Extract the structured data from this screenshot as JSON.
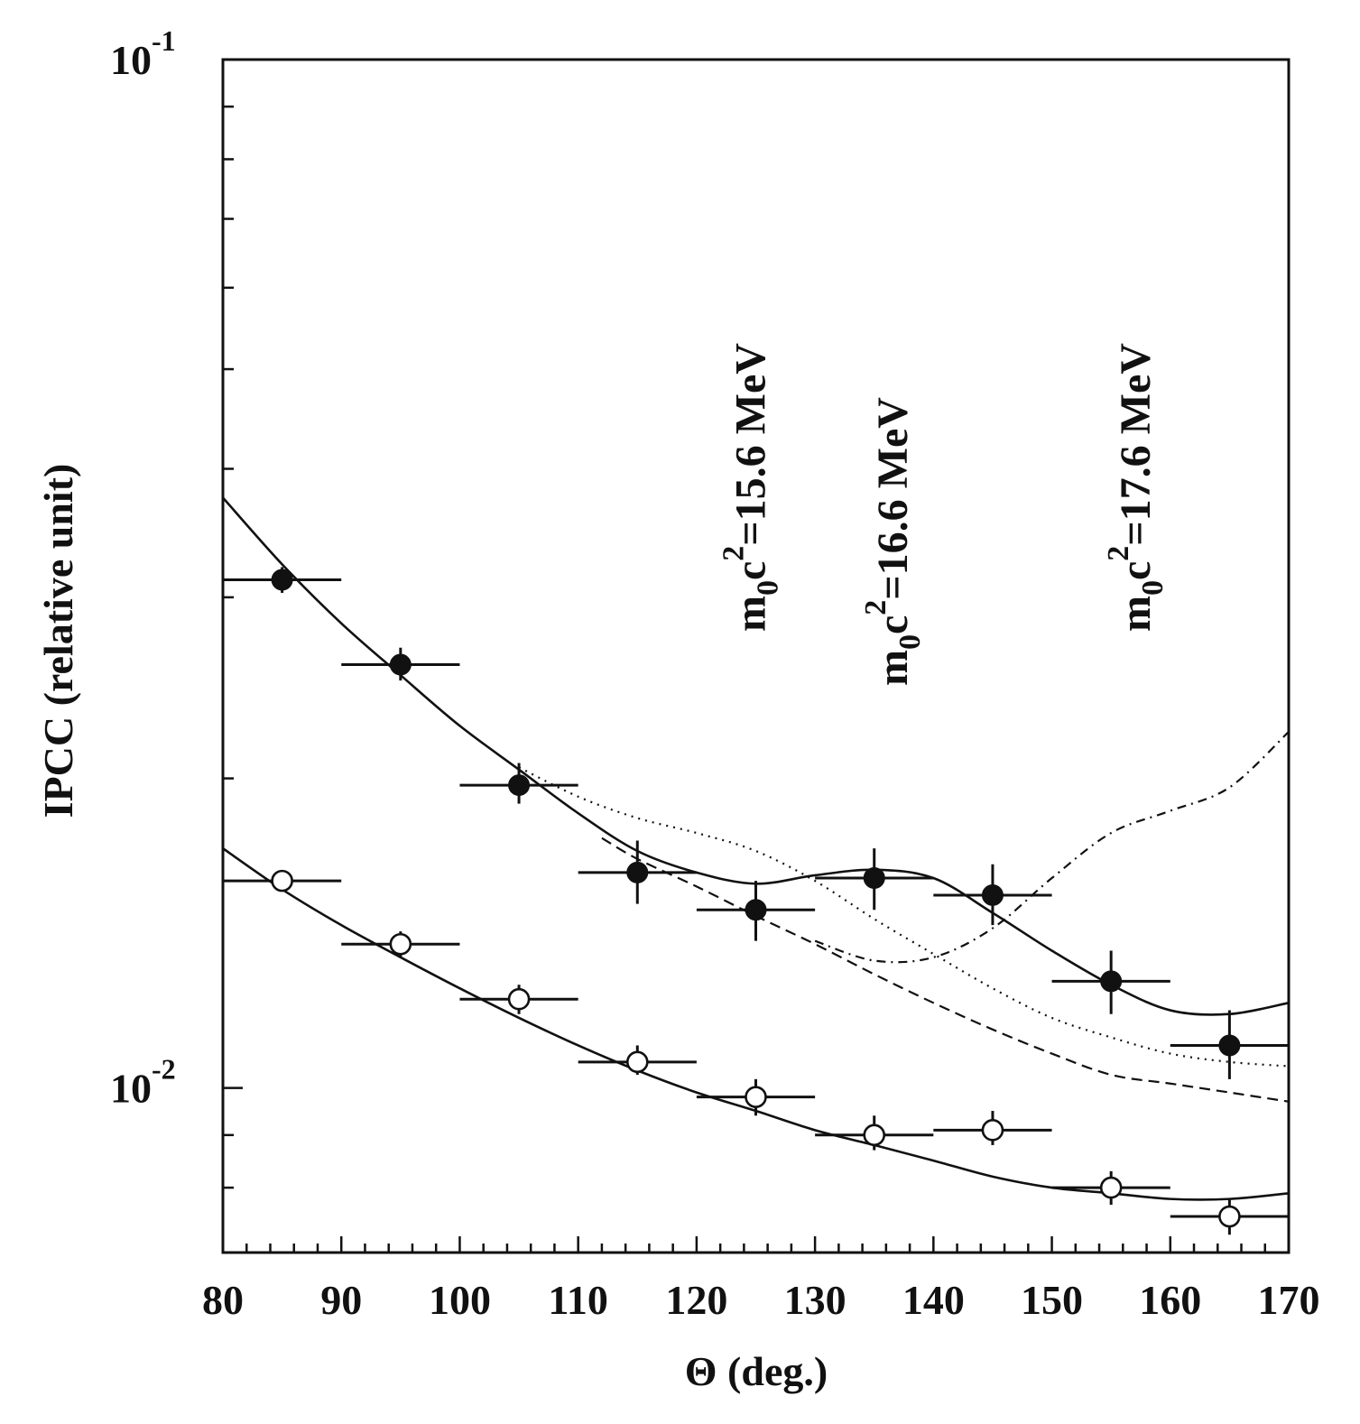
{
  "chart_data": {
    "type": "scatter",
    "title": "",
    "xlabel": "Θ (deg.)",
    "ylabel": "IPCC (relative unit)",
    "xlim": [
      80,
      170
    ],
    "ylim_log10": [
      -2.16,
      -1.0
    ],
    "yscale": "log",
    "x_ticks": [
      80,
      90,
      100,
      110,
      120,
      130,
      140,
      150,
      160,
      170
    ],
    "x_tick_labels": [
      "80",
      "90",
      "100",
      "110",
      "120",
      "130",
      "140",
      "150",
      "160",
      "170"
    ],
    "y_tick_labels": [
      {
        "value": 0.1,
        "base": "10",
        "exp": "-1"
      },
      {
        "value": 0.01,
        "base": "10",
        "exp": "-2"
      }
    ],
    "series": [
      {
        "name": "filled-circles",
        "marker": "filled",
        "points": [
          {
            "x": 85,
            "y": 0.0312,
            "yerr_lo": 0.0303,
            "yerr_hi": 0.0321
          },
          {
            "x": 95,
            "y": 0.0258,
            "yerr_lo": 0.0249,
            "yerr_hi": 0.0268
          },
          {
            "x": 105,
            "y": 0.0197,
            "yerr_lo": 0.0189,
            "yerr_hi": 0.0207
          },
          {
            "x": 115,
            "y": 0.0162,
            "yerr_lo": 0.0151,
            "yerr_hi": 0.0174
          },
          {
            "x": 125,
            "y": 0.0149,
            "yerr_lo": 0.0139,
            "yerr_hi": 0.0159
          },
          {
            "x": 135,
            "y": 0.016,
            "yerr_lo": 0.0149,
            "yerr_hi": 0.0171
          },
          {
            "x": 145,
            "y": 0.0154,
            "yerr_lo": 0.0144,
            "yerr_hi": 0.0165
          },
          {
            "x": 155,
            "y": 0.0127,
            "yerr_lo": 0.0118,
            "yerr_hi": 0.0136
          },
          {
            "x": 165,
            "y": 0.011,
            "yerr_lo": 0.0102,
            "yerr_hi": 0.0119
          }
        ]
      },
      {
        "name": "open-circles",
        "marker": "open",
        "points": [
          {
            "x": 85,
            "y": 0.0159,
            "yerr_lo": 0.0156,
            "yerr_hi": 0.0162
          },
          {
            "x": 95,
            "y": 0.0138,
            "yerr_lo": 0.0134,
            "yerr_hi": 0.0142
          },
          {
            "x": 105,
            "y": 0.0122,
            "yerr_lo": 0.0118,
            "yerr_hi": 0.0126
          },
          {
            "x": 115,
            "y": 0.0106,
            "yerr_lo": 0.0103,
            "yerr_hi": 0.011
          },
          {
            "x": 125,
            "y": 0.0098,
            "yerr_lo": 0.0094,
            "yerr_hi": 0.0102
          },
          {
            "x": 135,
            "y": 0.009,
            "yerr_lo": 0.0087,
            "yerr_hi": 0.0094
          },
          {
            "x": 145,
            "y": 0.0091,
            "yerr_lo": 0.0088,
            "yerr_hi": 0.0095
          },
          {
            "x": 155,
            "y": 0.008,
            "yerr_lo": 0.0077,
            "yerr_hi": 0.0083
          },
          {
            "x": 165,
            "y": 0.0075,
            "yerr_lo": 0.0072,
            "yerr_hi": 0.0078
          }
        ]
      }
    ],
    "curves": [
      {
        "name": "upper-fit",
        "style": "solid",
        "points": [
          [
            80,
            0.0375
          ],
          [
            85,
            0.0323
          ],
          [
            90,
            0.0283
          ],
          [
            95,
            0.0252
          ],
          [
            100,
            0.0225
          ],
          [
            105,
            0.0204
          ],
          [
            110,
            0.0185
          ],
          [
            115,
            0.017
          ],
          [
            120,
            0.0162
          ],
          [
            125,
            0.0158
          ],
          [
            130,
            0.0161
          ],
          [
            135,
            0.0163
          ],
          [
            140,
            0.016
          ],
          [
            145,
            0.0148
          ],
          [
            150,
            0.0136
          ],
          [
            155,
            0.0126
          ],
          [
            160,
            0.0119
          ],
          [
            165,
            0.0118
          ],
          [
            170,
            0.0121
          ]
        ]
      },
      {
        "name": "lower-fit",
        "style": "solid",
        "points": [
          [
            80,
            0.0171
          ],
          [
            85,
            0.0156
          ],
          [
            90,
            0.0144
          ],
          [
            95,
            0.0134
          ],
          [
            100,
            0.0125
          ],
          [
            105,
            0.0117
          ],
          [
            110,
            0.011
          ],
          [
            115,
            0.0104
          ],
          [
            120,
            0.0099
          ],
          [
            125,
            0.0095
          ],
          [
            130,
            0.0091
          ],
          [
            135,
            0.0088
          ],
          [
            140,
            0.0085
          ],
          [
            145,
            0.0082
          ],
          [
            150,
            0.008
          ],
          [
            155,
            0.0079
          ],
          [
            160,
            0.0078
          ],
          [
            165,
            0.0078
          ],
          [
            170,
            0.0079
          ]
        ]
      },
      {
        "name": "mass-15.6-dotted",
        "style": "dotted",
        "points": [
          [
            105,
            0.0205
          ],
          [
            110,
            0.0192
          ],
          [
            115,
            0.0183
          ],
          [
            120,
            0.0177
          ],
          [
            125,
            0.017
          ],
          [
            130,
            0.0159
          ],
          [
            135,
            0.0146
          ],
          [
            140,
            0.0135
          ],
          [
            145,
            0.0125
          ],
          [
            150,
            0.0117
          ],
          [
            155,
            0.0112
          ],
          [
            160,
            0.0108
          ],
          [
            165,
            0.0106
          ],
          [
            170,
            0.0105
          ]
        ]
      },
      {
        "name": "baseline-dashed",
        "style": "dashed",
        "points": [
          [
            112,
            0.0175
          ],
          [
            115,
            0.0167
          ],
          [
            120,
            0.0157
          ],
          [
            125,
            0.0147
          ],
          [
            130,
            0.0138
          ],
          [
            135,
            0.0129
          ],
          [
            140,
            0.0121
          ],
          [
            145,
            0.0114
          ],
          [
            150,
            0.0108
          ],
          [
            155,
            0.0103
          ],
          [
            160,
            0.0101
          ],
          [
            165,
            0.0099
          ],
          [
            170,
            0.0097
          ]
        ]
      },
      {
        "name": "mass-17.6-dashdot",
        "style": "dashdot",
        "points": [
          [
            130,
            0.0139
          ],
          [
            135,
            0.0133
          ],
          [
            140,
            0.0134
          ],
          [
            145,
            0.0143
          ],
          [
            150,
            0.016
          ],
          [
            155,
            0.0177
          ],
          [
            160,
            0.0186
          ],
          [
            165,
            0.0196
          ],
          [
            170,
            0.0222
          ]
        ]
      }
    ],
    "annotations": [
      {
        "text_main": "m",
        "sub": "0",
        "mid": "c",
        "sup": "2",
        "value": "=15.6 MeV",
        "x": 125
      },
      {
        "text_main": "m",
        "sub": "0",
        "mid": "c",
        "sup": "2",
        "value": "=16.6 MeV",
        "x": 137
      },
      {
        "text_main": "m",
        "sub": "0",
        "mid": "c",
        "sup": "2",
        "value": "=17.6 MeV",
        "x": 157.5
      }
    ]
  }
}
